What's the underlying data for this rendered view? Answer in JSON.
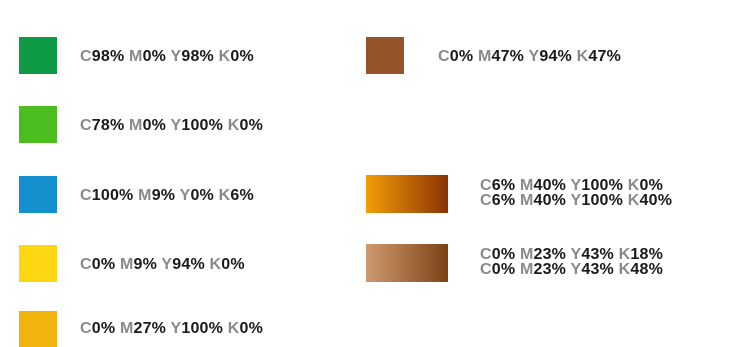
{
  "colors": {
    "c1": "#0f9a46",
    "c2": "#4cbd1f",
    "c3": "#1590cf",
    "c4": "#fcd712",
    "c5": "#f0b40c",
    "c6": "#93542a",
    "g1_start": "#f59c08",
    "g1_end": "#8a3405",
    "g2_start": "#cf9a70",
    "g2_end": "#7c4216"
  },
  "swatches": [
    {
      "name": "green-dark",
      "label": [
        [
          "C",
          "98%"
        ],
        [
          "M",
          "0%"
        ],
        [
          "Y",
          "98%"
        ],
        [
          "K",
          "0%"
        ]
      ]
    },
    {
      "name": "green-light",
      "label": [
        [
          "C",
          "78%"
        ],
        [
          "M",
          "0%"
        ],
        [
          "Y",
          "100%"
        ],
        [
          "K",
          "0%"
        ]
      ]
    },
    {
      "name": "blue",
      "label": [
        [
          "C",
          "100%"
        ],
        [
          "M",
          "9%"
        ],
        [
          "Y",
          "0%"
        ],
        [
          "K",
          "6%"
        ]
      ]
    },
    {
      "name": "yellow",
      "label": [
        [
          "C",
          "0%"
        ],
        [
          "M",
          "9%"
        ],
        [
          "Y",
          "94%"
        ],
        [
          "K",
          "0%"
        ]
      ]
    },
    {
      "name": "orange-yellow",
      "label": [
        [
          "C",
          "0%"
        ],
        [
          "M",
          "27%"
        ],
        [
          "Y",
          "100%"
        ],
        [
          "K",
          "0%"
        ]
      ]
    },
    {
      "name": "brown",
      "label": [
        [
          "C",
          "0%"
        ],
        [
          "M",
          "47%"
        ],
        [
          "Y",
          "94%"
        ],
        [
          "K",
          "47%"
        ]
      ]
    },
    {
      "name": "orange-gradient",
      "label1": [
        [
          "C",
          "6%"
        ],
        [
          "M",
          "40%"
        ],
        [
          "Y",
          "100%"
        ],
        [
          "K",
          "0%"
        ]
      ],
      "label2": [
        [
          "C",
          "6%"
        ],
        [
          "M",
          "40%"
        ],
        [
          "Y",
          "100%"
        ],
        [
          "K",
          "40%"
        ]
      ]
    },
    {
      "name": "tan-gradient",
      "label1": [
        [
          "C",
          "0%"
        ],
        [
          "M",
          "23%"
        ],
        [
          "Y",
          "43%"
        ],
        [
          "K",
          "18%"
        ]
      ],
      "label2": [
        [
          "C",
          "0%"
        ],
        [
          "M",
          "23%"
        ],
        [
          "Y",
          "43%"
        ],
        [
          "K",
          "48%"
        ]
      ]
    }
  ]
}
